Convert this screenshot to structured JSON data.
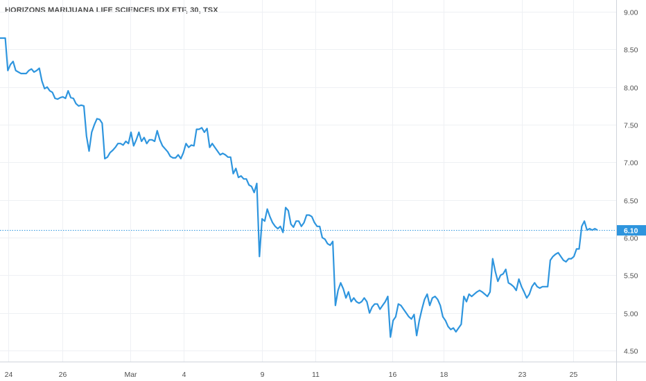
{
  "chart_data": {
    "type": "line",
    "title": "HORIZONS MARIJUANA LIFE SCIENCES IDX ETF, 30, TSX",
    "ylim": [
      4.35,
      9.1
    ],
    "y_ticks": [
      "9.00",
      "8.50",
      "8.00",
      "7.50",
      "7.00",
      "6.50",
      "6.00",
      "5.50",
      "5.00",
      "4.50"
    ],
    "x_ticks": [
      "24",
      "26",
      "Mar",
      "4",
      "9",
      "11",
      "16",
      "18",
      "23",
      "25"
    ],
    "last_price": "6.10",
    "grid": true,
    "price_axis": "right",
    "colors": {
      "line": "#2e95de",
      "grid": "#eef0f4",
      "last_label_bg": "#2e95de"
    },
    "series": [
      {
        "values": [
          8.65,
          8.65,
          8.65,
          8.22,
          8.3,
          8.34,
          8.22,
          8.2,
          8.18,
          8.18,
          8.18,
          8.22,
          8.24,
          8.2,
          8.22,
          8.25,
          8.08,
          7.98,
          8.0,
          7.95,
          7.93,
          7.85,
          7.84,
          7.86,
          7.87,
          7.85,
          7.95,
          7.86,
          7.85,
          7.78,
          7.75,
          7.76,
          7.75,
          7.35,
          7.15,
          7.4,
          7.5,
          7.58,
          7.57,
          7.52,
          7.05,
          7.07,
          7.13,
          7.16,
          7.2,
          7.25,
          7.25,
          7.23,
          7.28,
          7.25,
          7.4,
          7.22,
          7.3,
          7.4,
          7.28,
          7.33,
          7.25,
          7.3,
          7.3,
          7.28,
          7.42,
          7.3,
          7.22,
          7.18,
          7.14,
          7.08,
          7.06,
          7.06,
          7.1,
          7.05,
          7.13,
          7.25,
          7.2,
          7.23,
          7.22,
          7.44,
          7.44,
          7.46,
          7.4,
          7.45,
          7.2,
          7.25,
          7.2,
          7.15,
          7.1,
          7.12,
          7.1,
          7.07,
          7.07,
          6.85,
          6.92,
          6.8,
          6.82,
          6.78,
          6.78,
          6.7,
          6.68,
          6.6,
          6.72,
          5.75,
          6.25,
          6.22,
          6.38,
          6.28,
          6.2,
          6.15,
          6.12,
          6.15,
          6.07,
          6.4,
          6.36,
          6.18,
          6.14,
          6.22,
          6.22,
          6.15,
          6.2,
          6.3,
          6.3,
          6.28,
          6.2,
          6.15,
          6.15,
          6.0,
          5.98,
          5.92,
          5.9,
          5.95,
          5.1,
          5.3,
          5.4,
          5.32,
          5.2,
          5.28,
          5.15,
          5.2,
          5.15,
          5.13,
          5.15,
          5.2,
          5.15,
          5.0,
          5.08,
          5.12,
          5.12,
          5.05,
          5.1,
          5.15,
          5.22,
          4.68,
          4.9,
          4.95,
          5.12,
          5.1,
          5.05,
          5.0,
          4.95,
          4.92,
          4.98,
          4.7,
          4.9,
          5.05,
          5.18,
          5.25,
          5.1,
          5.2,
          5.22,
          5.18,
          5.1,
          4.95,
          4.9,
          4.82,
          4.78,
          4.8,
          4.75,
          4.8,
          4.85,
          5.22,
          5.15,
          5.25,
          5.22,
          5.25,
          5.28,
          5.3,
          5.28,
          5.25,
          5.22,
          5.28,
          5.72,
          5.55,
          5.42,
          5.5,
          5.52,
          5.58,
          5.4,
          5.38,
          5.35,
          5.3,
          5.45,
          5.35,
          5.28,
          5.2,
          5.25,
          5.35,
          5.4,
          5.35,
          5.33,
          5.35,
          5.35,
          5.35,
          5.7,
          5.75,
          5.78,
          5.8,
          5.75,
          5.7,
          5.68,
          5.72,
          5.72,
          5.75,
          5.85,
          5.85,
          6.15,
          6.22,
          6.1,
          6.12,
          6.1,
          6.12,
          6.1
        ]
      }
    ]
  }
}
